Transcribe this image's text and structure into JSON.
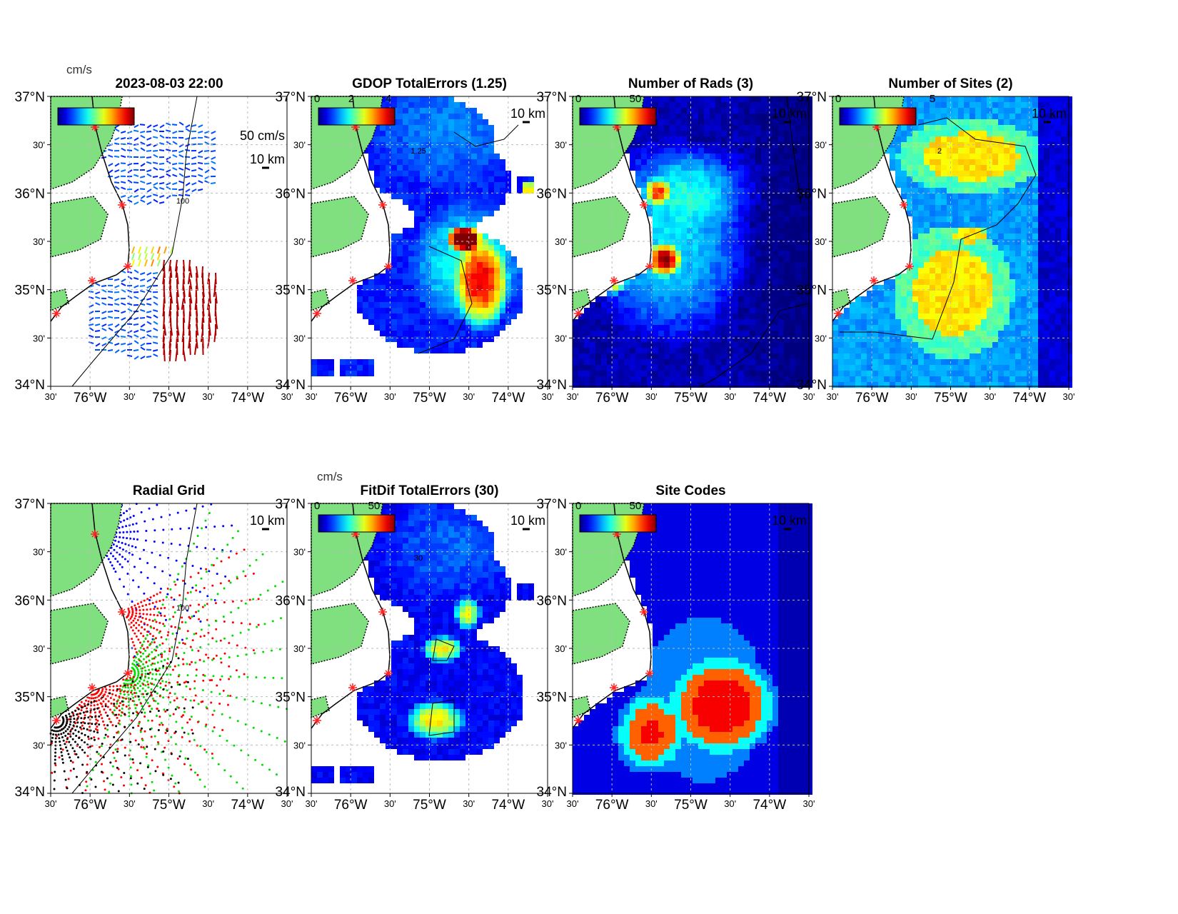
{
  "figure": {
    "timestamp_title": "2023-08-03 22:00",
    "lat_ticks": [
      "37°N",
      "30'",
      "36°N",
      "30'",
      "35°N",
      "30'",
      "34°N"
    ],
    "lon_ticks": [
      "30'",
      "76°W",
      "30'",
      "75°W",
      "30'",
      "74°W",
      "30'"
    ],
    "scale_km": "10 km",
    "vector_scale": "50 cm/s",
    "units": "cm/s"
  },
  "panels": [
    {
      "id": "totals",
      "title": "2023-08-03 22:00",
      "cbar_min": "",
      "cbar_max": "",
      "cbar_unit": "cm/s",
      "contour": "100",
      "kind": "vectors"
    },
    {
      "id": "gdop",
      "title": "GDOP TotalErrors (1.25)",
      "cbar_min": "0",
      "cbar_mid": "2",
      "cbar_max": "4",
      "contour": "1.25",
      "kind": "field",
      "range": [
        0,
        4
      ]
    },
    {
      "id": "nrads",
      "title": "Number of Rads (3)",
      "cbar_min": "0",
      "cbar_max": "50",
      "contour": "3",
      "kind": "field",
      "range": [
        0,
        50
      ]
    },
    {
      "id": "nsites",
      "title": "Number of Sites (2)",
      "cbar_min": "0",
      "cbar_max": "5",
      "contour": "2",
      "kind": "field",
      "range": [
        0,
        5
      ]
    },
    {
      "id": "radgrid",
      "title": "Radial Grid",
      "contour": "100",
      "kind": "radial"
    },
    {
      "id": "fitdif",
      "title": "FitDif TotalErrors (30)",
      "cbar_min": "0",
      "cbar_max": "50",
      "cbar_unit": "cm/s",
      "contour": "30",
      "kind": "field",
      "range": [
        0,
        50
      ]
    },
    {
      "id": "sitecodes",
      "title": "Site Codes",
      "cbar_min": "0",
      "cbar_max": "50",
      "kind": "field",
      "range": [
        0,
        50
      ]
    }
  ],
  "colors": {
    "land": "#80e080",
    "site_marker": "#ff2020",
    "radial_sites": [
      "#0000ff",
      "#ff0000",
      "#00dd00",
      "#ff0000",
      "#000000"
    ]
  },
  "fields": {
    "gdop": {
      "base": 0.15,
      "blobs": [
        [
          190,
          40,
          120,
          90,
          0.1
        ],
        [
          215,
          230,
          85,
          90,
          0.25
        ],
        [
          235,
          260,
          40,
          70,
          0.55
        ],
        [
          210,
          195,
          25,
          20,
          0.95
        ],
        [
          300,
          125,
          10,
          10,
          0.7
        ]
      ]
    },
    "nrads": {
      "base": 0.05,
      "blobs": [
        [
          130,
          200,
          120,
          150,
          0.3
        ],
        [
          125,
          225,
          25,
          25,
          0.65
        ],
        [
          50,
          255,
          25,
          20,
          0.5
        ],
        [
          115,
          130,
          20,
          20,
          0.5
        ],
        [
          180,
          120,
          90,
          60,
          0.15
        ]
      ]
    },
    "nsites": {
      "base": 0.25,
      "blobs": [
        [
          190,
          80,
          110,
          55,
          0.4
        ],
        [
          165,
          270,
          90,
          100,
          0.4
        ],
        [
          190,
          190,
          25,
          12,
          0.6
        ]
      ]
    },
    "fitdif": {
      "base": 0.12,
      "blobs": [
        [
          190,
          60,
          110,
          80,
          0.1
        ],
        [
          180,
          200,
          30,
          20,
          0.55
        ],
        [
          170,
          300,
          45,
          30,
          0.55
        ],
        [
          215,
          150,
          20,
          25,
          0.5
        ]
      ]
    },
    "sitecodes": {
      "base": 0.1,
      "blobs": [
        [
          180,
          270,
          110,
          150,
          0.25
        ],
        [
          210,
          280,
          80,
          70,
          0.6
        ],
        [
          100,
          320,
          50,
          60,
          0.6
        ]
      ]
    }
  }
}
